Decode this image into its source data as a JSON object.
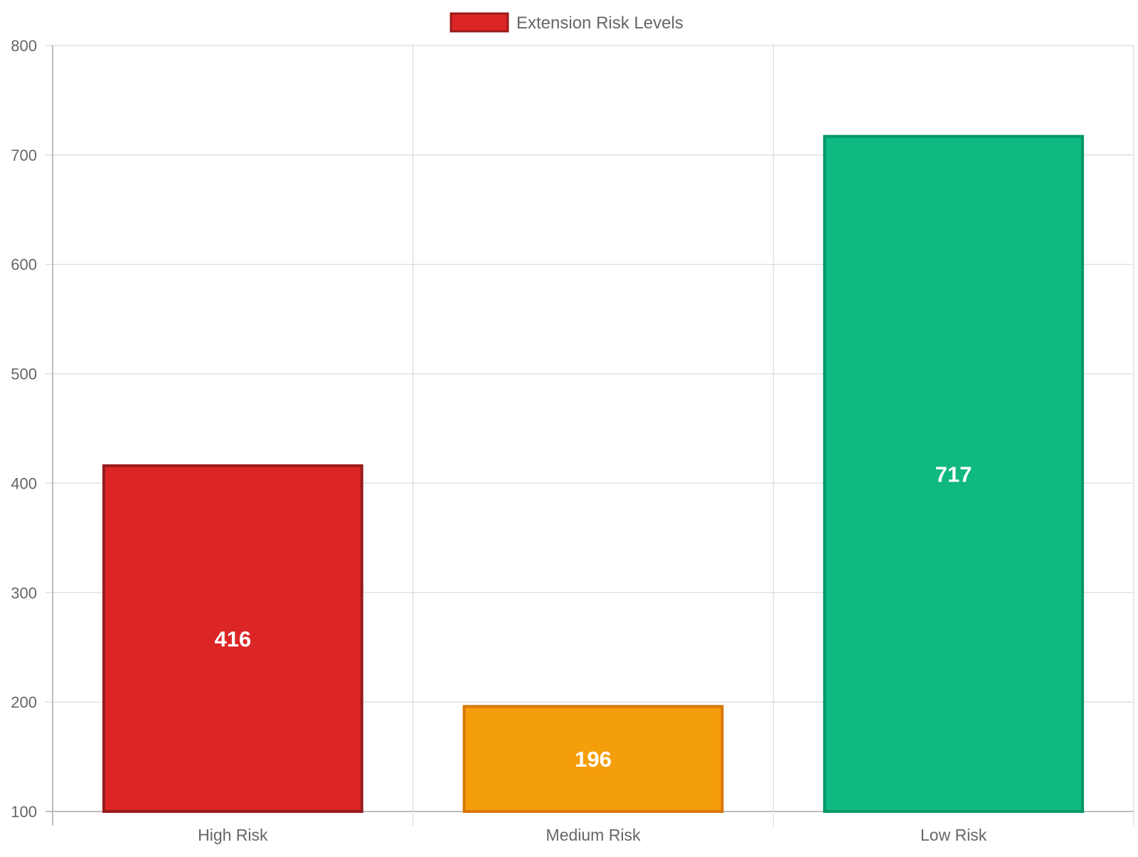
{
  "chart_data": {
    "type": "bar",
    "categories": [
      "High Risk",
      "Medium Risk",
      "Low Risk"
    ],
    "series": [
      {
        "name": "Extension Risk Levels",
        "values": [
          416,
          196,
          717
        ],
        "data_labels": [
          "416",
          "196",
          "717"
        ],
        "fill_colors": [
          "#dc2626",
          "#f59e0b",
          "#10b981"
        ],
        "border_colors": [
          "#991b1b",
          "#d97706",
          "#059669"
        ]
      }
    ],
    "legend": {
      "position": "top-center",
      "label": "Extension Risk Levels",
      "swatch_fill": "#dc2626",
      "swatch_border": "#991b1b"
    },
    "ylim": [
      100,
      800
    ],
    "yticks": [
      "100",
      "200",
      "300",
      "400",
      "500",
      "600",
      "700",
      "800"
    ],
    "grid": true,
    "xlabel": "",
    "ylabel": "",
    "colors": {
      "grid": "#e0e0e0",
      "axis": "#bdbdbd",
      "tick_text": "#666666",
      "data_label": "#ffffff"
    }
  }
}
